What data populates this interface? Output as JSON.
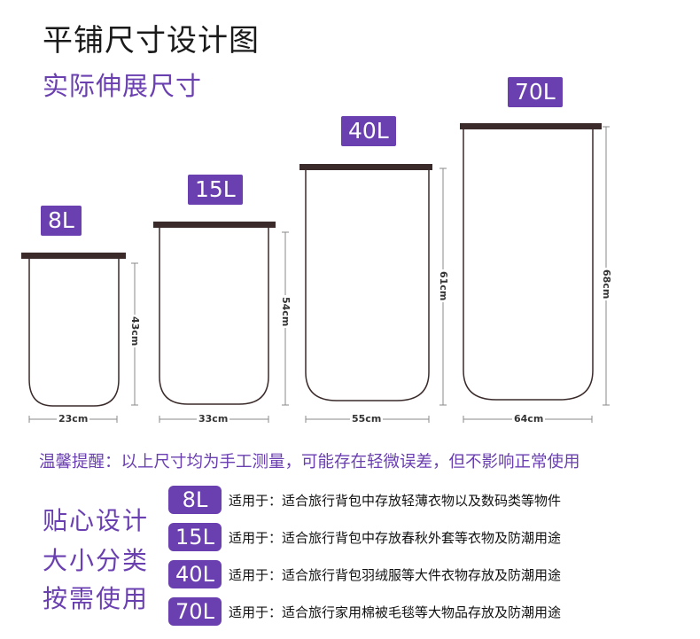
{
  "header": {
    "title": "平铺尺寸设计图",
    "subtitle": "实际伸展尺寸"
  },
  "bags": [
    {
      "volume": "8L",
      "width": "23cm",
      "height": "43cm"
    },
    {
      "volume": "15L",
      "width": "33cm",
      "height": "54cm"
    },
    {
      "volume": "40L",
      "width": "55cm",
      "height": "61cm"
    },
    {
      "volume": "70L",
      "width": "64cm",
      "height": "68cm"
    }
  ],
  "notice": "温馨提醒：以上尺寸均为手工测量，可能存在轻微误差，但不影响正常使用",
  "side_labels": [
    "贴心设计",
    "大小分类",
    "按需使用"
  ],
  "uses": [
    {
      "tag": "8L",
      "text": "适用于：适合旅行背包中存放轻薄衣物以及数码类等物件"
    },
    {
      "tag": "15L",
      "text": "适用于：适合旅行背包中存放春秋外套等衣物及防潮用途"
    },
    {
      "tag": "40L",
      "text": "适用于：适合旅行背包羽绒服等大件衣物存放及防潮用途"
    },
    {
      "tag": "70L",
      "text": "适用于：适合旅行家用棉被毛毯等大物品存放及防潮用途"
    }
  ],
  "colors": {
    "accent": "#6a3fb0",
    "zip": "#3a2a2a",
    "outline": "#3a2a2a"
  }
}
